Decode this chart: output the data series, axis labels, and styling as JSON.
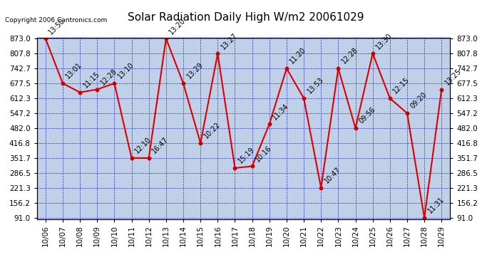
{
  "title": "Solar Radiation Daily High W/m2 20061029",
  "copyright": "Copyright 2006 Cantronics.com",
  "dates": [
    "10/06",
    "10/07",
    "10/08",
    "10/09",
    "10/10",
    "10/11",
    "10/12",
    "10/13",
    "10/14",
    "10/15",
    "10/16",
    "10/17",
    "10/18",
    "10/19",
    "10/20",
    "10/21",
    "10/22",
    "10/23",
    "10/24",
    "10/25",
    "10/26",
    "10/27",
    "10/28",
    "10/29"
  ],
  "values": [
    873.0,
    677.5,
    638.0,
    651.0,
    677.5,
    351.7,
    351.7,
    873.0,
    677.5,
    416.8,
    807.8,
    308.0,
    316.0,
    500.0,
    742.7,
    612.3,
    221.3,
    742.7,
    482.0,
    807.8,
    612.3,
    547.2,
    91.0,
    651.0
  ],
  "labels": [
    "13:50",
    "13:01",
    "11:15",
    "12:28",
    "13:10",
    "12:10",
    "16:47",
    "13:20",
    "13:29",
    "10:22",
    "13:27",
    "15:19",
    "10:16",
    "11:34",
    "11:20",
    "13:53",
    "10:47",
    "12:28",
    "09:56",
    "13:30",
    "12:15",
    "09:20",
    "11:31",
    "13:25"
  ],
  "ymin": 91.0,
  "ymax": 873.0,
  "yticks": [
    91.0,
    156.2,
    221.3,
    286.5,
    351.7,
    416.8,
    482.0,
    547.2,
    612.3,
    677.5,
    742.7,
    807.8,
    873.0
  ],
  "line_color": "#DD0000",
  "marker_color": "#CC0000",
  "bg_color": "#FFFFFF",
  "plot_bg_color": "#BFD0E8",
  "grid_color": "#3333CC",
  "title_fontsize": 11,
  "tick_fontsize": 7.5,
  "label_fontsize": 7,
  "copyright_fontsize": 6.5
}
